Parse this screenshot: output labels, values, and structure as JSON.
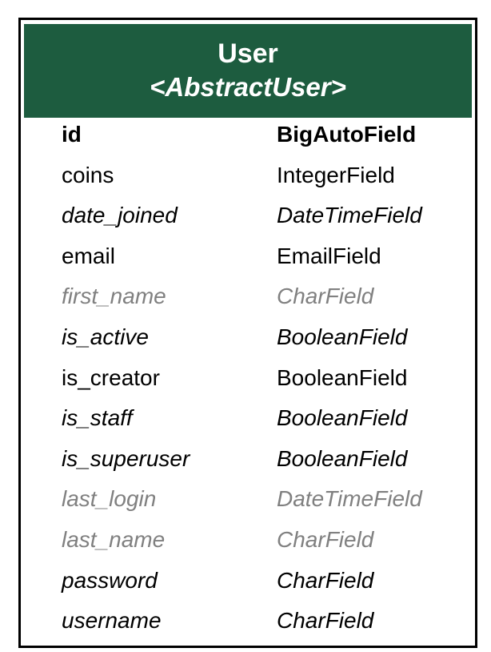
{
  "model": {
    "name": "User",
    "parent": "<AbstractUser>",
    "header_color": "#1d5c3f"
  },
  "fields": [
    {
      "name": "id",
      "type": "BigAutoField",
      "style": "pk"
    },
    {
      "name": "coins",
      "type": "IntegerField",
      "style": "normal"
    },
    {
      "name": "date_joined",
      "type": "DateTimeField",
      "style": "italic"
    },
    {
      "name": "email",
      "type": "EmailField",
      "style": "normal"
    },
    {
      "name": "first_name",
      "type": "CharField",
      "style": "inherited"
    },
    {
      "name": "is_active",
      "type": "BooleanField",
      "style": "italic"
    },
    {
      "name": "is_creator",
      "type": "BooleanField",
      "style": "normal"
    },
    {
      "name": "is_staff",
      "type": "BooleanField",
      "style": "italic"
    },
    {
      "name": "is_superuser",
      "type": "BooleanField",
      "style": "italic"
    },
    {
      "name": "last_login",
      "type": "DateTimeField",
      "style": "inherited"
    },
    {
      "name": "last_name",
      "type": "CharField",
      "style": "inherited"
    },
    {
      "name": "password",
      "type": "CharField",
      "style": "italic"
    },
    {
      "name": "username",
      "type": "CharField",
      "style": "italic"
    }
  ]
}
